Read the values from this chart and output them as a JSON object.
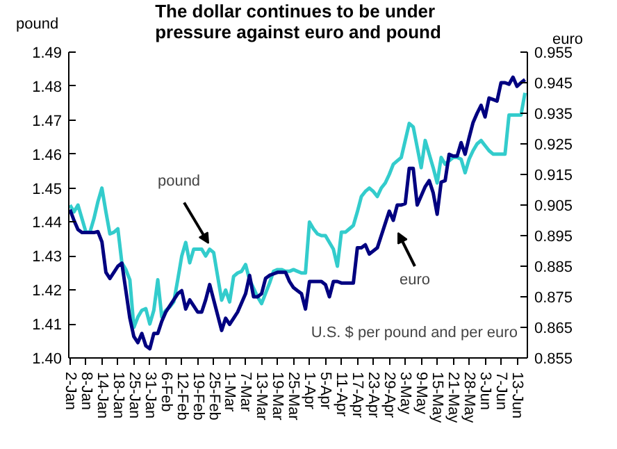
{
  "chart_data": {
    "type": "line",
    "title": "The dollar continues to be under\npressure against euro and pound",
    "ylabel": "pound",
    "y2label": "euro",
    "categories": [
      "2-Jan",
      null,
      null,
      null,
      "8-Jan",
      null,
      null,
      null,
      "14-Jan",
      null,
      null,
      null,
      "18-Jan",
      null,
      null,
      null,
      "25-Jan",
      null,
      null,
      null,
      "31-Jan",
      null,
      null,
      null,
      "6-Feb",
      null,
      null,
      null,
      "12-Feb",
      null,
      null,
      null,
      "19-Feb",
      null,
      null,
      null,
      "25-Feb",
      null,
      null,
      null,
      "1-Mar",
      null,
      null,
      null,
      "7-Mar",
      null,
      null,
      null,
      "13-Mar",
      null,
      null,
      null,
      "19-Mar",
      null,
      null,
      null,
      "25-Mar",
      null,
      null,
      null,
      "1-Apr",
      null,
      null,
      null,
      "5-Apr",
      null,
      null,
      null,
      "11-Apr",
      null,
      null,
      null,
      "17-Apr",
      null,
      null,
      null,
      "23-Apr",
      null,
      null,
      null,
      "29-Apr",
      null,
      null,
      null,
      "3-May",
      null,
      null,
      null,
      "9-May",
      null,
      null,
      null,
      "15-May",
      null,
      null,
      null,
      "21-May",
      null,
      null,
      null,
      "28-May",
      null,
      null,
      null,
      "3-Jun",
      null,
      null,
      null,
      "7-Jun",
      null,
      null,
      null,
      "13-Jun",
      null,
      null
    ],
    "ylim": [
      1.4,
      1.49
    ],
    "yticks": [
      {
        "value": 1.4,
        "label": "1.40"
      },
      1.41,
      1.42,
      1.43,
      1.44,
      1.45,
      1.46,
      1.47,
      1.48,
      1.49
    ],
    "y2lim": [
      0.855,
      0.955
    ],
    "y2ticks": [
      0.855,
      0.865,
      0.875,
      0.885,
      0.895,
      0.905,
      0.915,
      0.925,
      0.935,
      0.945,
      0.955
    ],
    "grid": false,
    "annotations": [
      {
        "text": "pound",
        "x": "25-Feb",
        "y": 1.431
      },
      "euro",
      "U.S. $ per pound  and per euro"
    ],
    "series": [
      {
        "color": "#33cccc",
        "values": [
          1.445,
          1.443,
          1.445,
          1.441,
          1.437,
          1.437,
          1.441,
          1.446,
          1.45,
          1.443,
          1.4365,
          1.437,
          1.438,
          1.428,
          1.426,
          1.423,
          1.409,
          1.412,
          1.414,
          1.4145,
          1.41,
          1.414,
          1.423,
          1.412,
          1.414,
          1.415,
          1.4165,
          1.423,
          1.43,
          1.434,
          1.428,
          1.432,
          1.432,
          1.432,
          1.43,
          1.432,
          1.431,
          1.424,
          1.417,
          1.42,
          1.4165,
          1.424,
          1.425,
          1.4255,
          1.4275,
          1.423,
          1.4205,
          1.418,
          1.416,
          1.419,
          1.422,
          1.4255,
          1.426,
          1.426,
          1.4255,
          1.4255,
          1.426,
          1.4255,
          1.425,
          1.425,
          1.44,
          1.438,
          1.4365,
          1.436,
          1.436,
          1.434,
          1.432,
          1.427,
          1.437,
          1.437,
          1.438,
          1.439,
          1.443,
          1.4475,
          1.449,
          1.45,
          1.449,
          1.4475,
          1.45,
          1.4515,
          1.454,
          1.457,
          1.458,
          1.459,
          1.464,
          1.469,
          1.468,
          1.462,
          1.456,
          1.464,
          1.46,
          1.456,
          1.4515,
          1.459,
          1.457,
          1.458,
          1.459,
          1.459,
          1.4585,
          1.4545,
          1.4585,
          1.461,
          1.463,
          1.464,
          1.4625,
          1.461,
          1.46,
          1.46,
          1.46,
          1.46,
          1.4715,
          1.4715,
          1.4715,
          1.4715,
          1.478
        ]
      },
      {
        "color": "#000080",
        "axis": "y2",
        "values": [
          0.9035,
          0.9,
          0.897,
          0.896,
          0.896,
          0.896,
          0.896,
          0.8963,
          0.893,
          0.883,
          0.881,
          0.883,
          0.885,
          0.886,
          0.877,
          0.868,
          0.862,
          0.86,
          0.863,
          0.859,
          0.858,
          0.863,
          0.863,
          0.867,
          0.87,
          0.872,
          0.874,
          0.876,
          0.877,
          0.871,
          0.874,
          0.872,
          0.87,
          0.87,
          0.874,
          0.879,
          0.874,
          0.869,
          0.864,
          0.868,
          0.866,
          0.868,
          0.87,
          0.873,
          0.876,
          0.882,
          0.875,
          0.875,
          0.876,
          0.881,
          0.882,
          0.8825,
          0.883,
          0.883,
          0.883,
          0.88,
          0.878,
          0.877,
          0.876,
          0.871,
          0.88,
          0.88,
          0.88,
          0.88,
          0.879,
          0.875,
          0.88,
          0.88,
          0.8795,
          0.8795,
          0.8795,
          0.8795,
          0.891,
          0.891,
          0.892,
          0.889,
          0.89,
          0.891,
          0.895,
          0.899,
          0.903,
          0.9,
          0.905,
          0.905,
          0.9055,
          0.917,
          0.917,
          0.905,
          0.908,
          0.911,
          0.913,
          0.909,
          0.902,
          0.9125,
          0.913,
          0.9216,
          0.921,
          0.921,
          0.9254,
          0.9216,
          0.927,
          0.932,
          0.935,
          0.9376,
          0.9338,
          0.94,
          0.9395,
          0.939,
          0.945,
          0.945,
          0.9445,
          0.9468,
          0.9438,
          0.945,
          0.946
        ]
      }
    ]
  }
}
